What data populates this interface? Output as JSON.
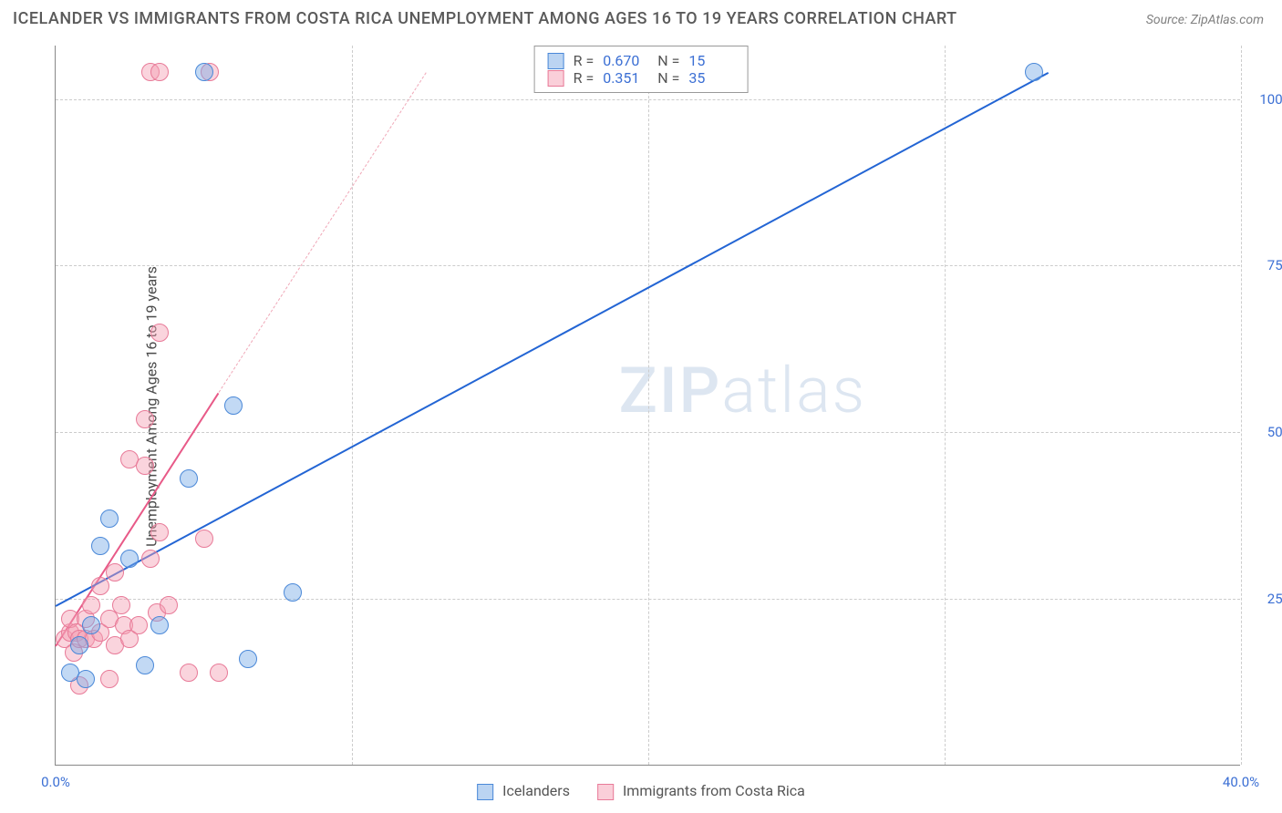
{
  "title": "ICELANDER VS IMMIGRANTS FROM COSTA RICA UNEMPLOYMENT AMONG AGES 16 TO 19 YEARS CORRELATION CHART",
  "source": "Source: ZipAtlas.com",
  "y_axis_label": "Unemployment Among Ages 16 to 19 years",
  "watermark_bold": "ZIP",
  "watermark_light": "atlas",
  "chart": {
    "type": "scatter",
    "xlim": [
      0,
      40
    ],
    "ylim": [
      0,
      108
    ],
    "x_ticks": [
      0,
      40
    ],
    "x_tick_labels": [
      "0.0%",
      "40.0%"
    ],
    "x_grid": [
      10,
      20,
      30,
      40
    ],
    "y_ticks": [
      25,
      50,
      75,
      100
    ],
    "y_tick_labels": [
      "25.0%",
      "50.0%",
      "75.0%",
      "100.0%"
    ],
    "background_color": "#ffffff",
    "grid_color": "#cccccc",
    "point_radius": 10,
    "series": [
      {
        "id": "blue",
        "label": "Icelanders",
        "fill": "rgba(120,170,230,0.45)",
        "stroke": "#4a88d8",
        "R": "0.670",
        "N": "15",
        "trend": {
          "x1": 0,
          "y1": 24,
          "x2": 33.5,
          "y2": 104,
          "color": "#2365d4",
          "width": 2
        },
        "points": [
          {
            "x": 0.5,
            "y": 14
          },
          {
            "x": 0.8,
            "y": 18
          },
          {
            "x": 1.0,
            "y": 13
          },
          {
            "x": 1.2,
            "y": 21
          },
          {
            "x": 1.5,
            "y": 33
          },
          {
            "x": 1.8,
            "y": 37
          },
          {
            "x": 2.5,
            "y": 31
          },
          {
            "x": 3.0,
            "y": 15
          },
          {
            "x": 3.5,
            "y": 21
          },
          {
            "x": 4.5,
            "y": 43
          },
          {
            "x": 5.0,
            "y": 104
          },
          {
            "x": 6.0,
            "y": 54
          },
          {
            "x": 6.5,
            "y": 16
          },
          {
            "x": 8.0,
            "y": 26
          },
          {
            "x": 33.0,
            "y": 104
          }
        ]
      },
      {
        "id": "pink",
        "label": "Immigrants from Costa Rica",
        "fill": "rgba(245,160,180,0.45)",
        "stroke": "#e87a98",
        "R": "0.351",
        "N": "35",
        "trend_solid": {
          "x1": 0,
          "y1": 18,
          "x2": 5.5,
          "y2": 56,
          "color": "#e85a88",
          "width": 2
        },
        "trend_dashed": {
          "x1": 5.5,
          "y1": 56,
          "x2": 12.5,
          "y2": 104,
          "color": "#f0a8b8"
        },
        "points": [
          {
            "x": 0.3,
            "y": 19
          },
          {
            "x": 0.5,
            "y": 20
          },
          {
            "x": 0.5,
            "y": 22
          },
          {
            "x": 0.6,
            "y": 17
          },
          {
            "x": 0.7,
            "y": 20
          },
          {
            "x": 0.8,
            "y": 12
          },
          {
            "x": 0.8,
            "y": 19
          },
          {
            "x": 1.0,
            "y": 19
          },
          {
            "x": 1.0,
            "y": 22
          },
          {
            "x": 1.2,
            "y": 24
          },
          {
            "x": 1.3,
            "y": 19
          },
          {
            "x": 1.5,
            "y": 27
          },
          {
            "x": 1.5,
            "y": 20
          },
          {
            "x": 1.8,
            "y": 22
          },
          {
            "x": 1.8,
            "y": 13
          },
          {
            "x": 2.0,
            "y": 18
          },
          {
            "x": 2.0,
            "y": 29
          },
          {
            "x": 2.2,
            "y": 24
          },
          {
            "x": 2.3,
            "y": 21
          },
          {
            "x": 2.5,
            "y": 46
          },
          {
            "x": 2.5,
            "y": 19
          },
          {
            "x": 2.8,
            "y": 21
          },
          {
            "x": 3.0,
            "y": 45
          },
          {
            "x": 3.0,
            "y": 52
          },
          {
            "x": 3.2,
            "y": 31
          },
          {
            "x": 3.4,
            "y": 23
          },
          {
            "x": 3.5,
            "y": 35
          },
          {
            "x": 3.5,
            "y": 65
          },
          {
            "x": 3.8,
            "y": 24
          },
          {
            "x": 3.2,
            "y": 104
          },
          {
            "x": 3.5,
            "y": 104
          },
          {
            "x": 4.5,
            "y": 14
          },
          {
            "x": 5.0,
            "y": 34
          },
          {
            "x": 5.2,
            "y": 104
          },
          {
            "x": 5.5,
            "y": 14
          }
        ]
      }
    ]
  },
  "legend_top": {
    "r_label": "R =",
    "n_label": "N ="
  },
  "legend_bottom": {
    "series1": "Icelanders",
    "series2": "Immigrants from Costa Rica"
  }
}
